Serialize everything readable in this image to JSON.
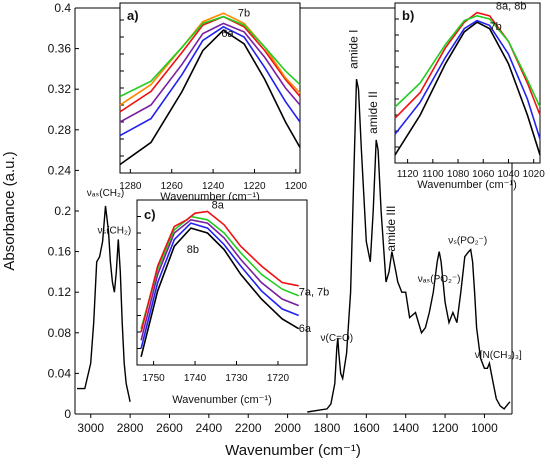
{
  "chart_data": {
    "type": "line",
    "xlabel": "Wavenumber (cm⁻¹)",
    "ylabel": "Absorbance (a.u.)",
    "xlim": [
      3080,
      860
    ],
    "ylim": [
      0,
      0.4
    ],
    "x_ticks": [
      "3000",
      "2800",
      "2600",
      "2400",
      "2200",
      "2000",
      "1800",
      "1600",
      "1400",
      "1200",
      "1000"
    ],
    "y_ticks": [
      "0",
      "0.04",
      "0.08",
      "0.12",
      "0.16",
      "0.2",
      "0.24",
      "0.28",
      "0.32",
      "0.36",
      "0.4"
    ],
    "series": [
      {
        "x": [
          3070,
          3030,
          3000,
          2985,
          2970,
          2955,
          2940,
          2925,
          2910,
          2900,
          2890,
          2880,
          2870,
          2860,
          2850,
          2840,
          2830,
          2820,
          2800
        ],
        "values": [
          0.025,
          0.025,
          0.05,
          0.09,
          0.15,
          0.155,
          0.17,
          0.205,
          0.18,
          0.15,
          0.13,
          0.12,
          0.14,
          0.172,
          0.14,
          0.09,
          0.05,
          0.03,
          0.012
        ]
      },
      {
        "x": [
          1900,
          1800,
          1780,
          1760,
          1750,
          1745,
          1740,
          1730,
          1720,
          1700,
          1680,
          1660,
          1650,
          1640,
          1625,
          1600,
          1580,
          1565,
          1550,
          1540,
          1525,
          1500,
          1485,
          1470,
          1460,
          1450,
          1440,
          1420,
          1400,
          1380,
          1350,
          1320,
          1300,
          1280,
          1260,
          1240,
          1230,
          1220,
          1200,
          1180,
          1160,
          1140,
          1120,
          1100,
          1080,
          1070,
          1060,
          1050,
          1040,
          1020,
          1000,
          985,
          975,
          965,
          955,
          940,
          920,
          900,
          880,
          870
        ],
        "values": [
          0.002,
          0.005,
          0.01,
          0.03,
          0.065,
          0.075,
          0.06,
          0.04,
          0.035,
          0.06,
          0.12,
          0.26,
          0.33,
          0.32,
          0.26,
          0.17,
          0.15,
          0.2,
          0.27,
          0.26,
          0.2,
          0.13,
          0.14,
          0.16,
          0.15,
          0.14,
          0.13,
          0.12,
          0.12,
          0.095,
          0.1,
          0.08,
          0.085,
          0.1,
          0.12,
          0.15,
          0.16,
          0.15,
          0.11,
          0.09,
          0.1,
          0.09,
          0.12,
          0.155,
          0.16,
          0.162,
          0.15,
          0.12,
          0.085,
          0.055,
          0.045,
          0.045,
          0.05,
          0.04,
          0.03,
          0.015,
          0.008,
          0.005,
          0.01,
          0.012
        ]
      }
    ],
    "peak_labels": [
      {
        "text": "νₐₛ(CH₂)",
        "x": 2925,
        "y": 0.215
      },
      {
        "text": "νₛ(CH₂)",
        "x": 2880,
        "y": 0.178
      },
      {
        "text": "amide I",
        "x": 1645,
        "y": 0.34
      },
      {
        "text": "amide II",
        "x": 1545,
        "y": 0.276
      },
      {
        "text": "amide III",
        "x": 1455,
        "y": 0.16
      },
      {
        "text": "νₐₛ(PO₂⁻)",
        "x": 1230,
        "y": 0.13
      },
      {
        "text": "νₛ(PO₂⁻)",
        "x": 1085,
        "y": 0.168
      },
      {
        "text": "ν(C=O)",
        "x": 1750,
        "y": 0.072
      },
      {
        "text": "ν[N(CH₃)₃]",
        "x": 930,
        "y": 0.055
      }
    ],
    "insets": [
      {
        "label": "a)",
        "xlabel": "Wavenumber (cm⁻¹)",
        "xlim": [
          1285,
          1198
        ],
        "x_ticks": [
          "1280",
          "1260",
          "1240",
          "1220",
          "1200"
        ],
        "curve_labels": [
          {
            "text": "7b",
            "x": 1228,
            "y": 0.92
          },
          {
            "text": "6a",
            "x": 1236,
            "y": 0.8
          }
        ],
        "series": [
          {
            "color": "#000000",
            "x": [
              1285,
              1270,
              1255,
              1245,
              1235,
              1225,
              1215,
              1205,
              1198
            ],
            "values": [
              0.05,
              0.18,
              0.48,
              0.72,
              0.84,
              0.76,
              0.55,
              0.3,
              0.15
            ]
          },
          {
            "color": "#2222ee",
            "x": [
              1285,
              1270,
              1255,
              1245,
              1235,
              1225,
              1215,
              1205,
              1198
            ],
            "values": [
              0.22,
              0.32,
              0.58,
              0.78,
              0.86,
              0.8,
              0.62,
              0.42,
              0.3
            ]
          },
          {
            "color": "#7a1fa2",
            "x": [
              1285,
              1270,
              1255,
              1245,
              1235,
              1225,
              1215,
              1205,
              1198
            ],
            "values": [
              0.3,
              0.4,
              0.64,
              0.82,
              0.88,
              0.83,
              0.68,
              0.5,
              0.4
            ]
          },
          {
            "color": "#ee1111",
            "x": [
              1285,
              1270,
              1255,
              1245,
              1235,
              1225,
              1215,
              1205,
              1198
            ],
            "values": [
              0.36,
              0.48,
              0.71,
              0.87,
              0.92,
              0.86,
              0.72,
              0.55,
              0.45
            ]
          },
          {
            "color": "#ff8800",
            "x": [
              1285,
              1270,
              1255,
              1245,
              1235,
              1225,
              1215,
              1205,
              1198
            ],
            "values": [
              0.4,
              0.52,
              0.74,
              0.89,
              0.94,
              0.88,
              0.74,
              0.56,
              0.47
            ]
          },
          {
            "color": "#22cc22",
            "x": [
              1285,
              1270,
              1255,
              1245,
              1235,
              1225,
              1215,
              1205,
              1198
            ],
            "values": [
              0.45,
              0.54,
              0.74,
              0.88,
              0.92,
              0.87,
              0.74,
              0.6,
              0.52
            ]
          }
        ]
      },
      {
        "label": "b)",
        "xlabel": "Wavenumber (cm⁻¹)",
        "xlim": [
          1130,
          1015
        ],
        "x_ticks": [
          "1120",
          "1100",
          "1080",
          "1060",
          "1040",
          "1020"
        ],
        "curve_labels": [
          {
            "text": "8a, 8b",
            "x": 1050,
            "y": 0.96
          },
          {
            "text": "7b",
            "x": 1055,
            "y": 0.83
          }
        ],
        "series": [
          {
            "color": "#000000",
            "x": [
              1130,
              1110,
              1090,
              1075,
              1065,
              1055,
              1040,
              1025,
              1015
            ],
            "values": [
              0.05,
              0.3,
              0.62,
              0.82,
              0.88,
              0.84,
              0.62,
              0.3,
              0.05
            ]
          },
          {
            "color": "#2222ee",
            "x": [
              1130,
              1110,
              1090,
              1075,
              1065,
              1055,
              1040,
              1025,
              1015
            ],
            "values": [
              0.18,
              0.38,
              0.66,
              0.84,
              0.89,
              0.86,
              0.68,
              0.4,
              0.15
            ]
          },
          {
            "color": "#ee1111",
            "x": [
              1130,
              1110,
              1090,
              1075,
              1065,
              1055,
              1040,
              1025,
              1015
            ],
            "values": [
              0.28,
              0.44,
              0.72,
              0.88,
              0.94,
              0.92,
              0.76,
              0.5,
              0.3
            ]
          },
          {
            "color": "#22cc22",
            "x": [
              1130,
              1110,
              1090,
              1075,
              1065,
              1055,
              1040,
              1025,
              1015
            ],
            "values": [
              0.35,
              0.5,
              0.74,
              0.89,
              0.92,
              0.9,
              0.76,
              0.52,
              0.35
            ]
          }
        ]
      },
      {
        "label": "c)",
        "xlabel": "Wavenumber (cm⁻¹)",
        "xlim": [
          1754,
          1713
        ],
        "x_ticks": [
          "1750",
          "1740",
          "1730",
          "1720"
        ],
        "curve_labels": [
          {
            "text": "8a",
            "x": 1736,
            "y": 0.95
          },
          {
            "text": "8b",
            "x": 1742,
            "y": 0.68
          },
          {
            "text": "7a, 7b",
            "x": 1715,
            "y": 0.42
          },
          {
            "text": "6a",
            "x": 1715,
            "y": 0.2
          }
        ],
        "series": [
          {
            "color": "#000000",
            "x": [
              1753,
              1749,
              1745,
              1741,
              1737,
              1733,
              1729,
              1724,
              1719,
              1715
            ],
            "values": [
              0.05,
              0.45,
              0.72,
              0.83,
              0.8,
              0.7,
              0.55,
              0.4,
              0.28,
              0.22
            ]
          },
          {
            "color": "#2222ee",
            "x": [
              1753,
              1749,
              1745,
              1741,
              1737,
              1733,
              1729,
              1724,
              1719,
              1715
            ],
            "values": [
              0.1,
              0.5,
              0.76,
              0.86,
              0.83,
              0.73,
              0.6,
              0.45,
              0.34,
              0.3
            ]
          },
          {
            "color": "#7a1fa2",
            "x": [
              1753,
              1749,
              1745,
              1741,
              1737,
              1733,
              1729,
              1724,
              1719,
              1715
            ],
            "values": [
              0.15,
              0.55,
              0.8,
              0.88,
              0.86,
              0.77,
              0.64,
              0.5,
              0.4,
              0.36
            ]
          },
          {
            "color": "#22cc22",
            "x": [
              1753,
              1749,
              1745,
              1741,
              1737,
              1733,
              1729,
              1724,
              1719,
              1715
            ],
            "values": [
              0.22,
              0.58,
              0.82,
              0.9,
              0.88,
              0.8,
              0.68,
              0.55,
              0.46,
              0.42
            ]
          },
          {
            "color": "#ee1111",
            "x": [
              1753,
              1749,
              1745,
              1742,
              1740,
              1737,
              1733,
              1729,
              1724,
              1719,
              1715
            ],
            "values": [
              0.2,
              0.6,
              0.84,
              0.88,
              0.92,
              0.93,
              0.85,
              0.72,
              0.6,
              0.5,
              0.48
            ]
          }
        ]
      }
    ]
  }
}
